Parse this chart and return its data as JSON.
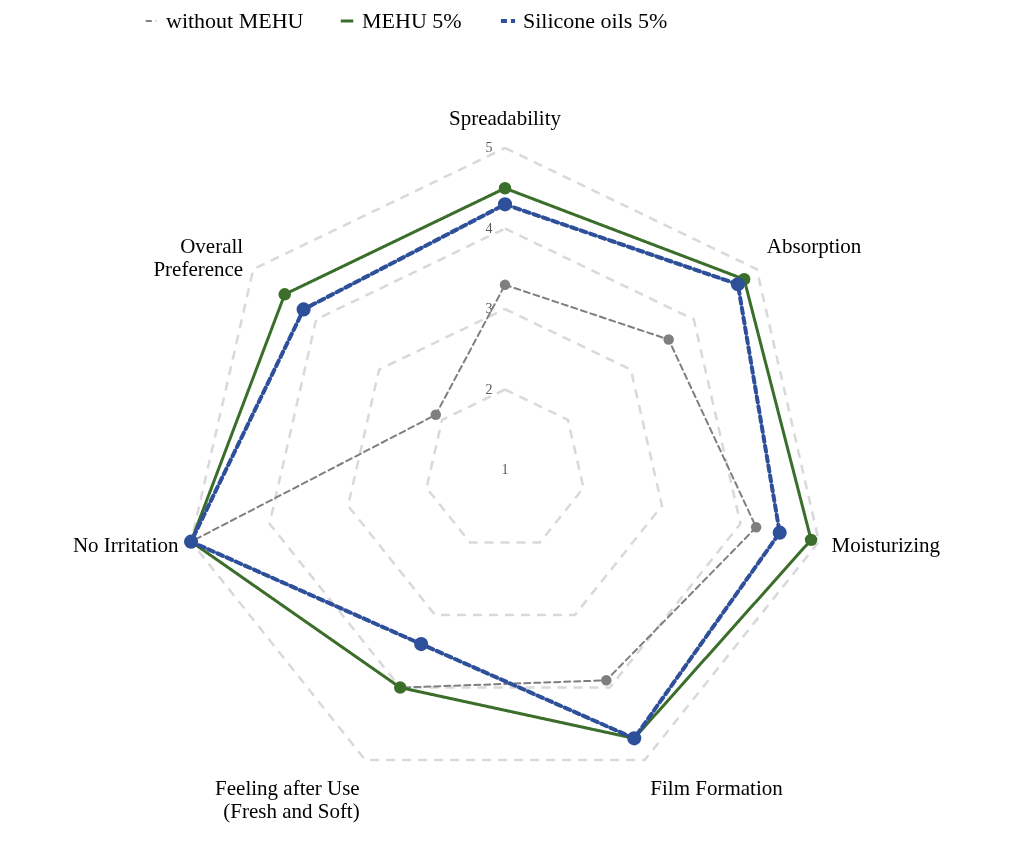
{
  "chart_data": {
    "type": "radar",
    "categories": [
      "Spreadability",
      "Absorption",
      "Moisturizing",
      "Film Formation",
      "Feeling after Use\n(Fresh and Soft)",
      "No Irritation",
      "Overall\nPreference"
    ],
    "ylim": [
      1,
      5
    ],
    "yticks": [
      1,
      2,
      3,
      4,
      5
    ],
    "grid": true,
    "legend": "top",
    "marker": "circle",
    "series": [
      {
        "name": "without MEHU",
        "color": "#7f7f7f",
        "line_style": "dashed",
        "values": [
          3.3,
          3.6,
          4.2,
          3.9,
          4.0,
          5.0,
          2.1
        ]
      },
      {
        "name": "MEHU 5%",
        "color": "#3a6e2a",
        "line_style": "solid",
        "values": [
          4.5,
          4.8,
          4.9,
          4.7,
          4.0,
          5.0,
          4.5
        ]
      },
      {
        "name": "Silicone oils 5%",
        "color": "#2e4f9a",
        "line_style": "dashed",
        "values": [
          4.3,
          4.7,
          4.5,
          4.7,
          3.4,
          5.0,
          4.2
        ]
      }
    ]
  }
}
